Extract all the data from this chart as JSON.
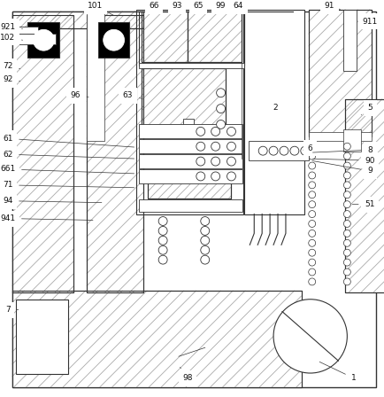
{
  "bg_color": "#ffffff",
  "lc": "#333333",
  "hc": "#aaaaaa",
  "fig_size": [
    4.35,
    4.48
  ],
  "dpi": 100
}
